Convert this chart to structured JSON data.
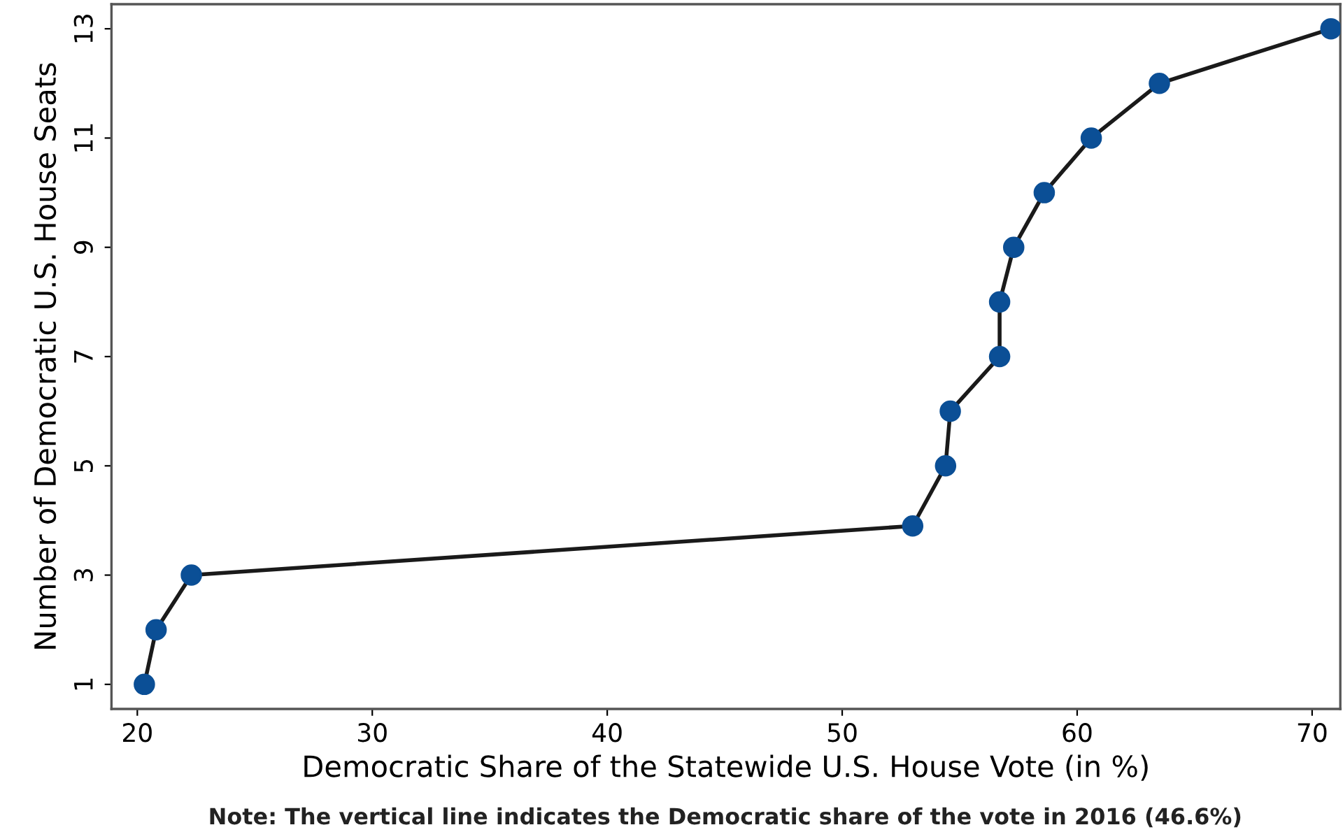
{
  "chart_data": {
    "type": "line",
    "xlabel": "Democratic Share of the Statewide U.S. House Vote (in %)",
    "ylabel": "Number of Democratic U.S. House Seats",
    "annotations": [
      "Note: The vertical line indicates the Democratic share of the vote in 2016 (46.6%)"
    ],
    "x": [
      20.3,
      20.8,
      22.3,
      53.0,
      54.4,
      54.6,
      56.7,
      56.7,
      57.3,
      58.6,
      60.6,
      63.5,
      70.8
    ],
    "series": [
      {
        "color": "#0b4f96",
        "values": [
          1,
          2,
          3,
          3.9,
          5,
          6,
          7,
          8,
          9,
          10,
          11,
          12,
          13
        ]
      }
    ],
    "marker": "circle",
    "grid": false,
    "xlim": [
      18.9,
      71.2
    ],
    "xticks": [
      20,
      30,
      40,
      50,
      60,
      70
    ],
    "ylim": [
      0.55,
      13.45
    ],
    "yticks": [
      1,
      3,
      5,
      7,
      9,
      11,
      13
    ]
  }
}
